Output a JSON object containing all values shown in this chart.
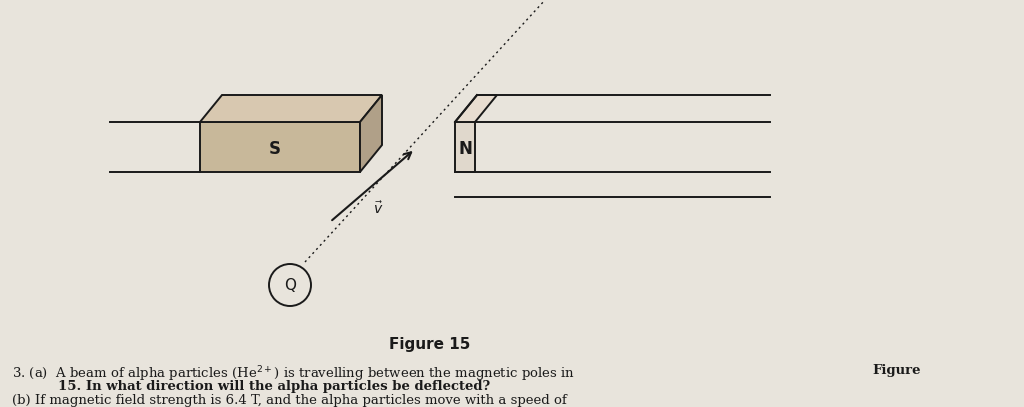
{
  "bg_color": "#e8e4dc",
  "figure_label": "Figure 15",
  "S_label": "S",
  "N_label": "N",
  "Q_label": "Q",
  "line_color": "#1a1a1a",
  "lw": 1.4,
  "s_face_color": "#c8b89a",
  "s_top_color": "#d8c8b0",
  "s_right_color": "#b0a088",
  "n_face_color": "#e0d8cc",
  "fig_w": 10.24,
  "fig_h": 4.07,
  "text_color": "#1a1a1a"
}
